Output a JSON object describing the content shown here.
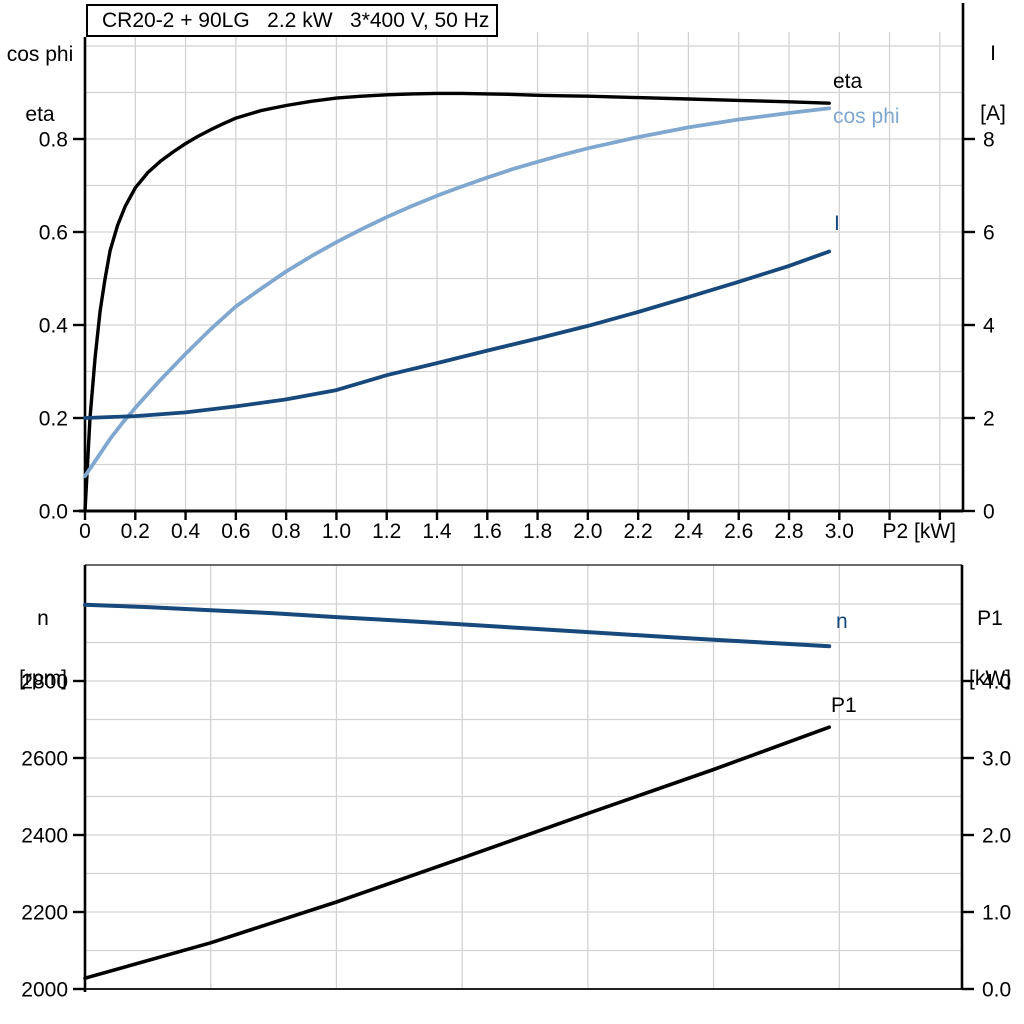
{
  "title_box": {
    "text": "CR20-2 + 90LG   2.2 kW   3*400 V, 50 Hz"
  },
  "colors": {
    "black": "#000000",
    "light_blue": "#7fa7cf",
    "dark_blue": "#17497c",
    "grid": "#d2d2d2",
    "frame_gray": "#3a3a3a",
    "background": "#ffffff"
  },
  "top_chart": {
    "header_left_1": "cos phi",
    "header_left_2": "eta",
    "header_right_1": "I",
    "header_right_2": "[A]",
    "x_label": "P2 [kW]",
    "curve_labels": {
      "eta": "eta",
      "cos_phi": "cos phi",
      "current": "I"
    }
  },
  "bottom_chart": {
    "header_left_1": "n",
    "header_left_2": "[rpm]",
    "header_right_1": "P1",
    "header_right_2": "[kW]",
    "curve_labels": {
      "n": "n",
      "p1": "P1"
    }
  },
  "chart_data": [
    {
      "type": "line",
      "title": "CR20-2 + 90LG   2.2 kW   3*400 V, 50 Hz",
      "xlabel": "P2 [kW]",
      "x_range": [
        0,
        3.49
      ],
      "x_tick_step": 0.2,
      "x_tick_labels": [
        "0",
        "0.2",
        "0.4",
        "0.6",
        "0.8",
        "1.0",
        "1.2",
        "1.4",
        "1.6",
        "1.8",
        "2.0",
        "2.2",
        "2.4",
        "2.6",
        "2.8",
        "3.0"
      ],
      "grid": true,
      "left_axis": {
        "label": "cos phi / eta",
        "range": [
          0,
          1.03
        ],
        "ticks": [
          0,
          0.2,
          0.4,
          0.6,
          0.8
        ],
        "tick_labels": [
          "0.0",
          "0.2",
          "0.4",
          "0.6",
          "0.8"
        ],
        "minor_grid_step": 0.1
      },
      "right_axis": {
        "label": "I [A]",
        "range": [
          0,
          10.3
        ],
        "ticks": [
          0,
          2,
          4,
          6,
          8
        ],
        "tick_labels": [
          "0",
          "2",
          "4",
          "6",
          "8"
        ]
      },
      "series": [
        {
          "name": "eta",
          "axis": "left",
          "color": "#000000",
          "points": [
            [
              0,
              0
            ],
            [
              0.02,
              0.2
            ],
            [
              0.04,
              0.33
            ],
            [
              0.06,
              0.43
            ],
            [
              0.08,
              0.5
            ],
            [
              0.1,
              0.56
            ],
            [
              0.13,
              0.615
            ],
            [
              0.16,
              0.655
            ],
            [
              0.2,
              0.695
            ],
            [
              0.25,
              0.728
            ],
            [
              0.3,
              0.752
            ],
            [
              0.35,
              0.772
            ],
            [
              0.4,
              0.79
            ],
            [
              0.45,
              0.806
            ],
            [
              0.5,
              0.82
            ],
            [
              0.55,
              0.833
            ],
            [
              0.6,
              0.845
            ],
            [
              0.7,
              0.861
            ],
            [
              0.8,
              0.872
            ],
            [
              0.9,
              0.881
            ],
            [
              1,
              0.888
            ],
            [
              1.1,
              0.892
            ],
            [
              1.2,
              0.895
            ],
            [
              1.3,
              0.897
            ],
            [
              1.4,
              0.898
            ],
            [
              1.5,
              0.898
            ],
            [
              1.6,
              0.897
            ],
            [
              1.7,
              0.896
            ],
            [
              1.8,
              0.894
            ],
            [
              1.9,
              0.893
            ],
            [
              2,
              0.892
            ],
            [
              2.2,
              0.889
            ],
            [
              2.4,
              0.886
            ],
            [
              2.6,
              0.883
            ],
            [
              2.8,
              0.88
            ],
            [
              2.96,
              0.877
            ]
          ]
        },
        {
          "name": "cos phi",
          "axis": "left",
          "color": "#7fa7cf",
          "points": [
            [
              0,
              0.075
            ],
            [
              0.05,
              0.115
            ],
            [
              0.1,
              0.155
            ],
            [
              0.15,
              0.19
            ],
            [
              0.2,
              0.222
            ],
            [
              0.3,
              0.282
            ],
            [
              0.4,
              0.338
            ],
            [
              0.5,
              0.391
            ],
            [
              0.6,
              0.44
            ],
            [
              0.7,
              0.478
            ],
            [
              0.8,
              0.515
            ],
            [
              0.9,
              0.548
            ],
            [
              1,
              0.578
            ],
            [
              1.1,
              0.606
            ],
            [
              1.2,
              0.632
            ],
            [
              1.3,
              0.656
            ],
            [
              1.4,
              0.678
            ],
            [
              1.5,
              0.698
            ],
            [
              1.6,
              0.717
            ],
            [
              1.7,
              0.735
            ],
            [
              1.8,
              0.751
            ],
            [
              1.9,
              0.766
            ],
            [
              2,
              0.78
            ],
            [
              2.2,
              0.804
            ],
            [
              2.4,
              0.825
            ],
            [
              2.6,
              0.842
            ],
            [
              2.8,
              0.856
            ],
            [
              2.96,
              0.866
            ]
          ]
        },
        {
          "name": "I",
          "axis": "right",
          "color": "#17497c",
          "points": [
            [
              0,
              2
            ],
            [
              0.2,
              2.04
            ],
            [
              0.4,
              2.12
            ],
            [
              0.6,
              2.25
            ],
            [
              0.8,
              2.4
            ],
            [
              1,
              2.6
            ],
            [
              1.2,
              2.92
            ],
            [
              1.4,
              3.18
            ],
            [
              1.6,
              3.45
            ],
            [
              1.8,
              3.71
            ],
            [
              2,
              3.98
            ],
            [
              2.2,
              4.28
            ],
            [
              2.4,
              4.6
            ],
            [
              2.6,
              4.93
            ],
            [
              2.8,
              5.27
            ],
            [
              2.96,
              5.58
            ]
          ]
        }
      ]
    },
    {
      "type": "line",
      "title": "",
      "xlabel": "",
      "x_range": [
        0,
        3.49
      ],
      "x_grid_step": 0.5,
      "grid": true,
      "left_axis": {
        "label": "n [rpm]",
        "range": [
          2000,
          3100
        ],
        "ticks": [
          2000,
          2200,
          2400,
          2600,
          2800
        ],
        "tick_labels": [
          "2000",
          "2200",
          "2400",
          "2600",
          "2800"
        ],
        "minor_grid_step": 100
      },
      "right_axis": {
        "label": "P1 [kW]",
        "range": [
          0,
          5.5
        ],
        "ticks": [
          0,
          1,
          2,
          3,
          4
        ],
        "tick_labels": [
          "0.0",
          "1.0",
          "2.0",
          "3.0",
          "4.0"
        ],
        "minor_grid_step": 0.5
      },
      "series": [
        {
          "name": "n",
          "axis": "left",
          "color": "#17497c",
          "points": [
            [
              0,
              2998
            ],
            [
              0.25,
              2992
            ],
            [
              0.5,
              2984
            ],
            [
              0.75,
              2976
            ],
            [
              1,
              2966
            ],
            [
              1.25,
              2957
            ],
            [
              1.5,
              2947
            ],
            [
              1.75,
              2937
            ],
            [
              2,
              2927
            ],
            [
              2.25,
              2917
            ],
            [
              2.5,
              2907
            ],
            [
              2.75,
              2898
            ],
            [
              2.96,
              2890
            ]
          ]
        },
        {
          "name": "P1",
          "axis": "right",
          "color": "#000000",
          "points": [
            [
              0,
              0.14
            ],
            [
              0.5,
              0.6
            ],
            [
              1,
              1.13
            ],
            [
              1.5,
              1.7
            ],
            [
              2,
              2.28
            ],
            [
              2.5,
              2.85
            ],
            [
              2.96,
              3.4
            ]
          ]
        }
      ]
    }
  ]
}
